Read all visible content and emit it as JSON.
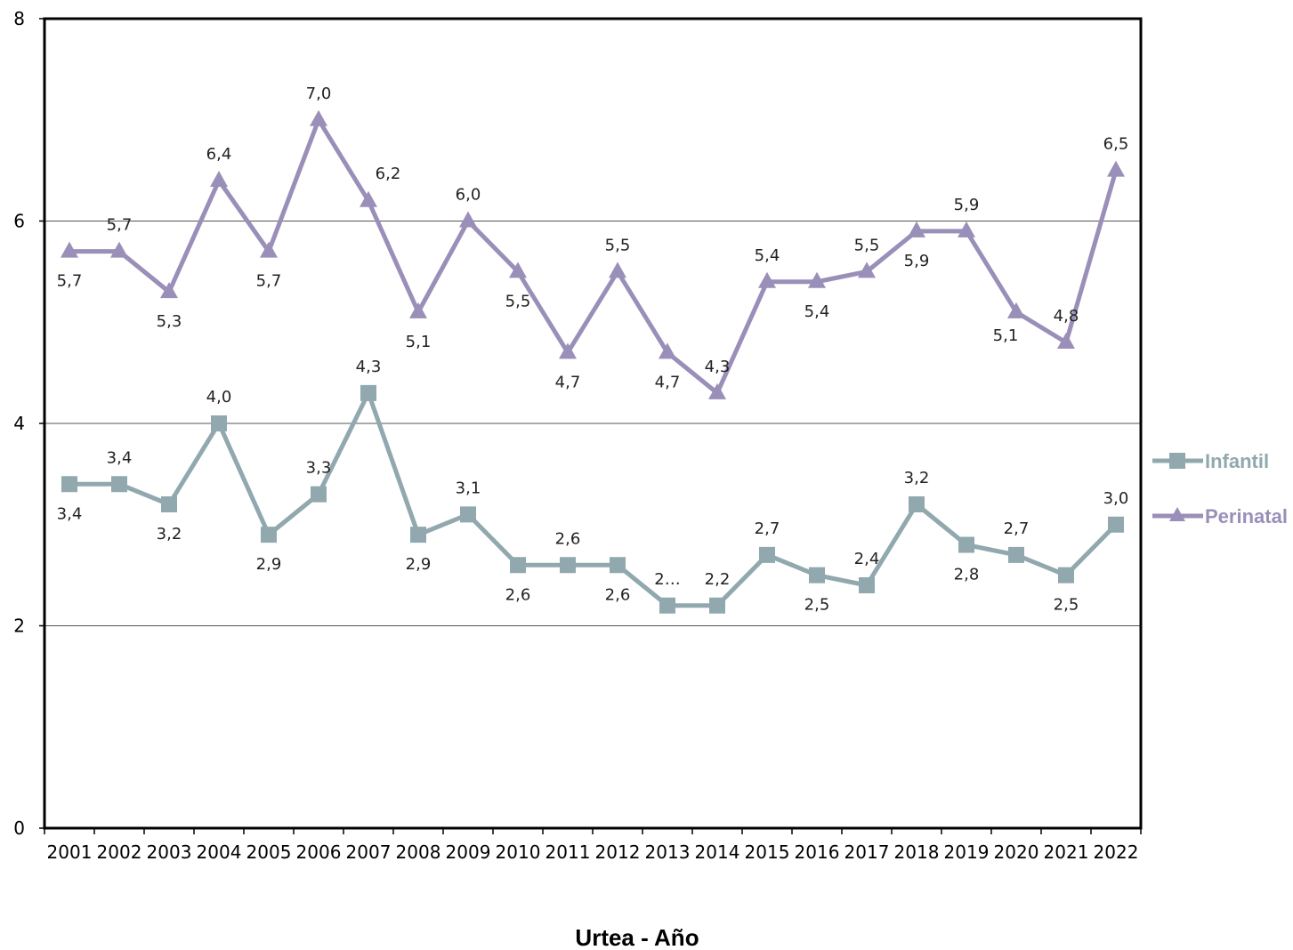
{
  "chart_data": {
    "type": "line",
    "title": "",
    "xlabel": "Urtea - Año",
    "ylabel": "",
    "ylim": [
      0,
      8
    ],
    "yticks": [
      "0",
      "2",
      "4",
      "6",
      "8"
    ],
    "grid": "horizontal at 2, 4, 6",
    "legend_position": "right",
    "x": [
      "2001",
      "2002",
      "2003",
      "2004",
      "2005",
      "2006",
      "2007",
      "2008",
      "2009",
      "2010",
      "2011",
      "2012",
      "2013",
      "2014",
      "2015",
      "2016",
      "2017",
      "2018",
      "2019",
      "2020",
      "2021",
      "2022"
    ],
    "series": [
      {
        "name": "Infantil",
        "color": "#90a8ae",
        "marker": "square",
        "values": [
          3.4,
          3.4,
          3.2,
          4.0,
          2.9,
          3.3,
          4.3,
          2.9,
          3.1,
          2.6,
          2.6,
          2.6,
          2.2,
          2.2,
          2.7,
          2.5,
          2.4,
          3.2,
          2.8,
          2.7,
          2.5,
          3.0
        ],
        "labels": [
          "3,4",
          "3,4",
          "3,2",
          "4,0",
          "2,9",
          "3,3",
          "4,3",
          "2,9",
          "3,1",
          "2,6",
          "2,6",
          "2,6",
          "2…",
          "2,2",
          "2,7",
          "2,5",
          "2,4",
          "3,2",
          "2,8",
          "2,7",
          "2,5",
          "3,0"
        ],
        "label_side": [
          "below",
          "above",
          "below",
          "above",
          "below",
          "above",
          "above",
          "below",
          "above",
          "below",
          "above",
          "below",
          "above",
          "above",
          "above",
          "below",
          "above",
          "above",
          "below",
          "above",
          "below",
          "above"
        ]
      },
      {
        "name": "Perinatal",
        "color": "#9a8fb8",
        "marker": "triangle",
        "values": [
          5.7,
          5.7,
          5.3,
          6.4,
          5.7,
          7.0,
          6.2,
          5.1,
          6.0,
          5.5,
          4.7,
          5.5,
          4.7,
          4.3,
          5.4,
          5.4,
          5.5,
          5.9,
          5.9,
          5.1,
          4.8,
          6.5
        ],
        "labels": [
          "5,7",
          "5,7",
          "5,3",
          "6,4",
          "5,7",
          "7,0",
          "6,2",
          "5,1",
          "6,0",
          "5,5",
          "4,7",
          "5,5",
          "4,7",
          "4,3",
          "5,4",
          "5,4",
          "5,5",
          "5,9",
          "5,9",
          "5,1",
          "4,8",
          "6,5"
        ],
        "label_side": [
          "below",
          "above",
          "below",
          "above",
          "below",
          "above",
          "above-right",
          "below",
          "above",
          "below",
          "below",
          "above",
          "below",
          "above",
          "above",
          "below",
          "above",
          "below",
          "above",
          "below-left",
          "above",
          "above"
        ]
      }
    ]
  }
}
